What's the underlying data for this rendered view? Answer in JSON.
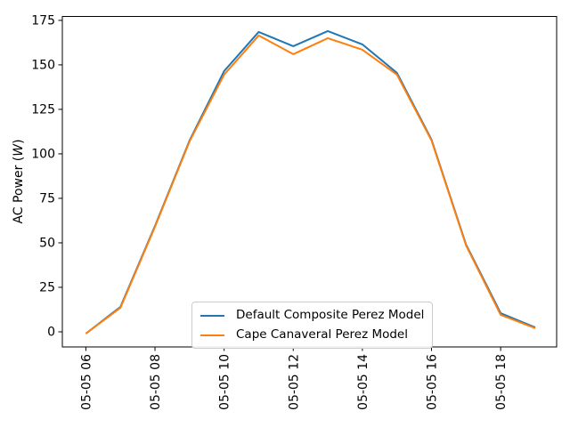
{
  "figure": {
    "background": "#ffffff",
    "text_color": "#000000",
    "spine_color": "#000000",
    "ylabel_prefix": "AC Power (",
    "ylabel_unit": "W",
    "ylabel_suffix": ")"
  },
  "legend": {
    "position": "lower center",
    "items": [
      {
        "label": "Default Composite Perez Model",
        "color": "#1f77b4"
      },
      {
        "label": "Cape Canaveral Perez Model",
        "color": "#ff7f0e"
      }
    ]
  },
  "chart_data": {
    "type": "line",
    "title": "",
    "xlabel": "",
    "ylabel": "AC Power (W)",
    "grid": false,
    "legend_position": "lower center",
    "x_hours": [
      6,
      7,
      8,
      9,
      10,
      11,
      12,
      13,
      14,
      15,
      16,
      17,
      18,
      19
    ],
    "x_tick_hours": [
      6,
      8,
      10,
      12,
      14,
      16,
      18
    ],
    "x_tick_labels": [
      "05-05 06",
      "05-05 08",
      "05-05 10",
      "05-05 12",
      "05-05 14",
      "05-05 16",
      "05-05 18"
    ],
    "y_ticks": [
      0,
      25,
      50,
      75,
      100,
      125,
      150,
      175
    ],
    "xlim_hours": [
      5.32,
      19.62
    ],
    "ylim": [
      -8.5,
      177.2
    ],
    "series": [
      {
        "name": "Default Composite Perez Model",
        "color": "#1f77b4",
        "values": [
          -1,
          14,
          59.5,
          107.5,
          146.5,
          168.5,
          160.5,
          169,
          161.5,
          145.5,
          108,
          49,
          10.5,
          2.5
        ]
      },
      {
        "name": "Cape Canaveral Perez Model",
        "color": "#ff7f0e",
        "values": [
          -1,
          13.5,
          59,
          107,
          144.5,
          166.5,
          156,
          165,
          158.5,
          144.5,
          107.5,
          48.5,
          9.5,
          2
        ]
      }
    ]
  }
}
